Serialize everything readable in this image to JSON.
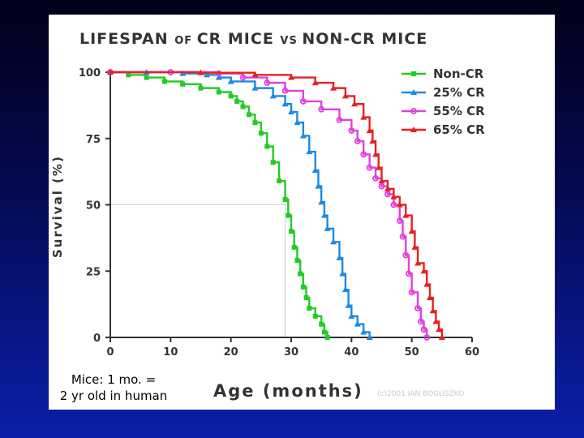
{
  "note": {
    "line1": "Mice: 1 mo. =",
    "line2": "2 yr old in human"
  },
  "watermark": "(c)2001 IAN BOGUSZKO",
  "chart_data": {
    "type": "line",
    "title_parts": [
      "LIFESPAN ",
      "OF ",
      "CR MICE ",
      "VS ",
      "NON-CR MICE"
    ],
    "xlabel": "Age (months)",
    "ylabel": "Survival (%)",
    "xlim": [
      0,
      60
    ],
    "ylim": [
      0,
      100
    ],
    "xticks": [
      0,
      10,
      20,
      30,
      40,
      50,
      60
    ],
    "yticks": [
      0,
      25,
      50,
      75,
      100
    ],
    "legend_position": "top-right",
    "reference_line": {
      "x": 29,
      "y": 50
    },
    "series": [
      {
        "name": "Non-CR",
        "color": "#22cc22",
        "marker": "square",
        "points": [
          [
            0,
            100
          ],
          [
            3,
            99
          ],
          [
            6,
            98
          ],
          [
            9,
            96.5
          ],
          [
            12,
            95.5
          ],
          [
            15,
            94
          ],
          [
            18,
            92.5
          ],
          [
            20,
            91
          ],
          [
            21,
            89
          ],
          [
            22,
            87
          ],
          [
            23,
            84
          ],
          [
            24,
            81
          ],
          [
            25,
            77
          ],
          [
            26,
            72
          ],
          [
            27,
            66
          ],
          [
            28,
            59
          ],
          [
            29,
            52
          ],
          [
            29.5,
            46
          ],
          [
            30,
            40
          ],
          [
            30.5,
            34
          ],
          [
            31,
            29
          ],
          [
            31.5,
            24
          ],
          [
            32,
            19
          ],
          [
            32.5,
            15
          ],
          [
            33,
            11
          ],
          [
            34,
            8
          ],
          [
            35,
            5
          ],
          [
            35.5,
            2
          ],
          [
            36,
            0
          ]
        ]
      },
      {
        "name": "25% CR",
        "color": "#1a8ae6",
        "marker": "triangle",
        "points": [
          [
            0,
            100
          ],
          [
            6,
            100
          ],
          [
            12,
            99.5
          ],
          [
            16,
            99
          ],
          [
            18,
            98
          ],
          [
            20,
            96.5
          ],
          [
            24,
            94
          ],
          [
            27,
            91
          ],
          [
            29,
            88
          ],
          [
            30,
            85
          ],
          [
            31,
            81
          ],
          [
            32,
            76
          ],
          [
            33,
            70
          ],
          [
            34,
            63
          ],
          [
            34.5,
            57
          ],
          [
            35,
            51
          ],
          [
            35.5,
            46
          ],
          [
            36,
            41
          ],
          [
            37,
            36
          ],
          [
            38,
            30
          ],
          [
            38.5,
            24
          ],
          [
            39,
            18
          ],
          [
            39.5,
            12
          ],
          [
            40,
            8
          ],
          [
            41,
            5
          ],
          [
            42,
            2
          ],
          [
            43,
            0
          ]
        ]
      },
      {
        "name": "55% CR",
        "color": "#e040e0",
        "marker": "circle",
        "points": [
          [
            0,
            100
          ],
          [
            10,
            100
          ],
          [
            18,
            99.5
          ],
          [
            22,
            98
          ],
          [
            26,
            96
          ],
          [
            29,
            93
          ],
          [
            32,
            89
          ],
          [
            35,
            86
          ],
          [
            38,
            82
          ],
          [
            40,
            78
          ],
          [
            41,
            74
          ],
          [
            42,
            69
          ],
          [
            43,
            64
          ],
          [
            44,
            60
          ],
          [
            45,
            57
          ],
          [
            46,
            54
          ],
          [
            47,
            50
          ],
          [
            48,
            44
          ],
          [
            48.5,
            38
          ],
          [
            49,
            31
          ],
          [
            49.5,
            24
          ],
          [
            50,
            17
          ],
          [
            51,
            11
          ],
          [
            51.5,
            6
          ],
          [
            52,
            3
          ],
          [
            52.5,
            0
          ]
        ]
      },
      {
        "name": "65% CR",
        "color": "#e82020",
        "marker": "triangle",
        "points": [
          [
            0,
            100
          ],
          [
            15,
            99.8
          ],
          [
            24,
            99
          ],
          [
            30,
            98
          ],
          [
            34,
            96
          ],
          [
            37,
            94
          ],
          [
            39,
            91
          ],
          [
            40.5,
            88
          ],
          [
            42,
            83
          ],
          [
            43,
            78
          ],
          [
            43.5,
            74
          ],
          [
            44,
            69
          ],
          [
            44.5,
            64
          ],
          [
            45,
            59
          ],
          [
            46,
            56
          ],
          [
            47,
            53
          ],
          [
            48,
            50
          ],
          [
            49,
            46
          ],
          [
            50,
            40
          ],
          [
            50.5,
            34
          ],
          [
            51,
            28
          ],
          [
            52,
            25
          ],
          [
            52.5,
            20
          ],
          [
            53,
            15
          ],
          [
            53.5,
            10
          ],
          [
            54,
            6
          ],
          [
            54.5,
            3
          ],
          [
            55,
            0
          ]
        ]
      }
    ]
  }
}
